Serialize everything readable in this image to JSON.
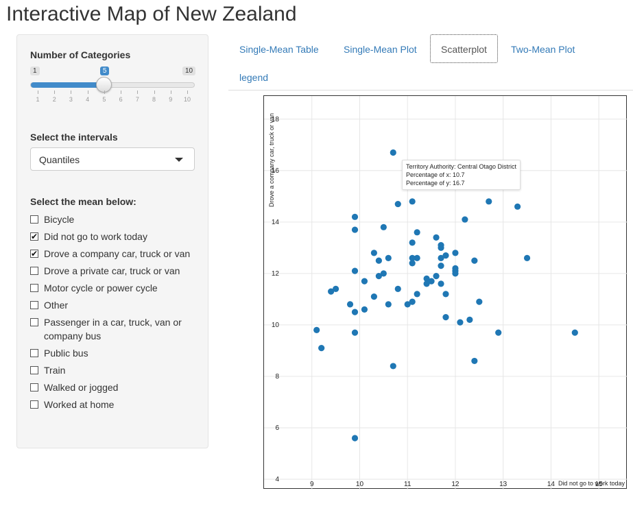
{
  "app": {
    "title": "Interactive Map of New Zealand"
  },
  "sidebar": {
    "categories": {
      "label": "Number of Categories",
      "min": 1,
      "max": 10,
      "value": 5,
      "min_label": "1",
      "max_label": "10",
      "value_label": "5",
      "ticks": [
        "1",
        "2",
        "3",
        "4",
        "5",
        "6",
        "7",
        "8",
        "9",
        "10"
      ]
    },
    "intervals": {
      "label": "Select the intervals",
      "selected": "Quantiles"
    },
    "means": {
      "label": "Select the mean below:",
      "items": [
        {
          "label": "Bicycle",
          "checked": false
        },
        {
          "label": "Did not go to work today",
          "checked": true
        },
        {
          "label": "Drove a company car, truck or van",
          "checked": true
        },
        {
          "label": "Drove a private car, truck or van",
          "checked": false
        },
        {
          "label": "Motor cycle or power cycle",
          "checked": false
        },
        {
          "label": "Other",
          "checked": false
        },
        {
          "label": "Passenger in a car, truck, van or company bus",
          "checked": false
        },
        {
          "label": "Public bus",
          "checked": false
        },
        {
          "label": "Train",
          "checked": false
        },
        {
          "label": "Walked or jogged",
          "checked": false
        },
        {
          "label": "Worked at home",
          "checked": false
        }
      ]
    }
  },
  "tabs": [
    {
      "label": "Single-Mean Table",
      "active": false
    },
    {
      "label": "Single-Mean Plot",
      "active": false
    },
    {
      "label": "Scatterplot",
      "active": true
    },
    {
      "label": "Two-Mean Plot",
      "active": false
    },
    {
      "label": "legend",
      "active": false
    }
  ],
  "tooltip": {
    "line1": "Territory Authority: Central Otago District",
    "line2": "Percentage of x: 10.7",
    "line3": "Percentage of y: 16.7"
  },
  "colors": {
    "point": "#1f77b4",
    "accent": "#428bca",
    "link": "#337ab7"
  },
  "chart_data": {
    "type": "scatter",
    "title": "",
    "xlabel": "Did not go to work today",
    "ylabel": "Drove a company car, truck or van",
    "xlim": [
      8,
      15.6
    ],
    "ylim": [
      3.6,
      18.9
    ],
    "xticks": [
      9,
      10,
      11,
      12,
      13,
      14,
      15
    ],
    "yticks": [
      4,
      6,
      8,
      10,
      12,
      14,
      16,
      18
    ],
    "grid": true,
    "x": [
      10.7,
      10.8,
      11.1,
      12.7,
      13.3,
      9.9,
      9.9,
      10.5,
      12.2,
      11.2,
      11.1,
      11.6,
      11.7,
      11.7,
      10.3,
      11.2,
      10.4,
      11.1,
      11.1,
      11.7,
      11.8,
      12.0,
      13.5,
      12.4,
      9.9,
      10.5,
      10.4,
      12.0,
      12.0,
      11.6,
      11.4,
      11.5,
      11.4,
      10.1,
      9.5,
      9.4,
      10.8,
      11.7,
      11.8,
      10.3,
      11.2,
      12.5,
      9.8,
      11.1,
      11.0,
      10.6,
      10.1,
      9.9,
      11.8,
      12.3,
      12.1,
      9.1,
      9.2,
      9.9,
      12.9,
      14.5,
      10.7,
      12.4,
      9.9,
      10.6,
      12.0,
      11.7
    ],
    "y": [
      16.7,
      14.7,
      14.8,
      14.8,
      14.6,
      14.2,
      13.7,
      13.8,
      14.1,
      13.6,
      13.2,
      13.4,
      13.0,
      13.1,
      12.8,
      12.6,
      12.5,
      12.6,
      12.4,
      12.6,
      12.7,
      12.8,
      12.6,
      12.5,
      12.1,
      12.0,
      11.9,
      12.2,
      12.1,
      11.9,
      11.8,
      11.7,
      11.6,
      11.7,
      11.4,
      11.3,
      11.4,
      11.6,
      11.2,
      11.1,
      11.2,
      10.9,
      10.8,
      10.9,
      10.8,
      10.8,
      10.6,
      10.5,
      10.3,
      10.2,
      10.1,
      9.8,
      9.1,
      9.7,
      9.7,
      9.7,
      8.4,
      8.6,
      5.6,
      12.6,
      12.0,
      12.3
    ]
  }
}
